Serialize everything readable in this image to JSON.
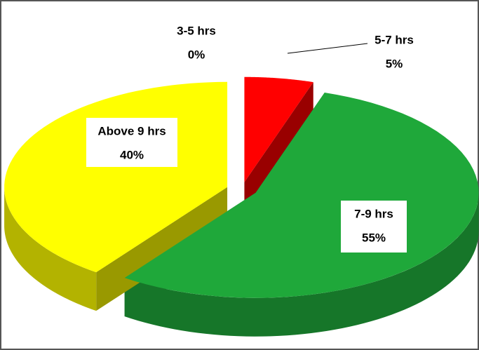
{
  "chart_data": {
    "type": "pie3d",
    "categories": [
      "3-5 hrs",
      "5-7 hrs",
      "7-9 hrs",
      "Above 9 hrs"
    ],
    "values": [
      0,
      5,
      55,
      40
    ],
    "value_labels": [
      "0%",
      "5%",
      "55%",
      "40%"
    ],
    "colors": [
      "#4f81bd",
      "#ff0000",
      "#1fa83a",
      "#ffff00"
    ]
  }
}
